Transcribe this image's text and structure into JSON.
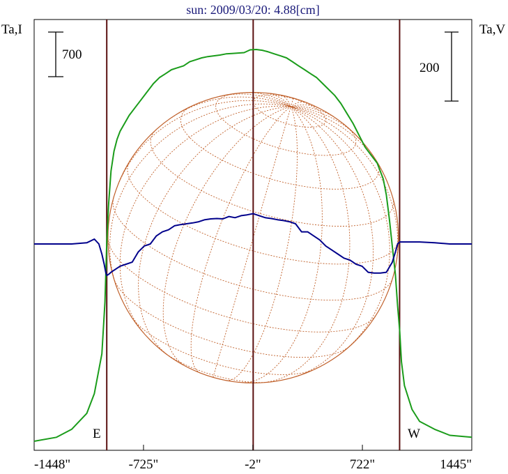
{
  "chart_data": {
    "type": "line",
    "title": "sun: 2009/03/20: 4.88[cm]",
    "left_axis_label": "Ta,I",
    "right_axis_label": "Ta,V",
    "x_tick_labels": [
      "-1448\"",
      "-725\"",
      "-2\"",
      "722\"",
      "1445\""
    ],
    "x_ticks": [
      -1448,
      -725,
      -2,
      722,
      1445
    ],
    "xlim": [
      -1448,
      1445
    ],
    "grid": false,
    "scale_bars": {
      "left": "700",
      "right": "200"
    },
    "limb_labels": {
      "east": "E",
      "west": "W"
    },
    "limb_x": [
      -968,
      0,
      968
    ],
    "disk": {
      "center_x": 0,
      "radius_arcsec": 960
    },
    "colors": {
      "intensity": "#1a9c1a",
      "polarization": "#00008b",
      "limb_lines": "#5a1010",
      "disk": "#c0602a",
      "title": "#1a1a7a"
    },
    "series": [
      {
        "key": "I",
        "x": [
          -1448,
          -1300,
          -1200,
          -1100,
          -1050,
          -1000,
          -980,
          -968,
          -955,
          -940,
          -920,
          -900,
          -880,
          -850,
          -820,
          -780,
          -740,
          -700,
          -660,
          -620,
          -580,
          -540,
          -500,
          -460,
          -420,
          -380,
          -340,
          -300,
          -260,
          -220,
          -180,
          -140,
          -100,
          -60,
          -20,
          20,
          60,
          100,
          140,
          180,
          220,
          260,
          300,
          340,
          380,
          420,
          460,
          500,
          540,
          580,
          620,
          660,
          700,
          740,
          780,
          820,
          860,
          880,
          900,
          920,
          940,
          955,
          968,
          980,
          1000,
          1050,
          1100,
          1200,
          1300,
          1445
        ],
        "y": [
          0.0,
          0.01,
          0.03,
          0.07,
          0.12,
          0.22,
          0.35,
          0.5,
          0.6,
          0.68,
          0.73,
          0.76,
          0.78,
          0.8,
          0.82,
          0.84,
          0.86,
          0.88,
          0.9,
          0.915,
          0.925,
          0.935,
          0.94,
          0.945,
          0.955,
          0.96,
          0.965,
          0.968,
          0.97,
          0.972,
          0.975,
          0.976,
          0.977,
          0.978,
          0.985,
          0.986,
          0.984,
          0.98,
          0.975,
          0.97,
          0.965,
          0.955,
          0.945,
          0.935,
          0.925,
          0.915,
          0.9,
          0.885,
          0.87,
          0.85,
          0.825,
          0.8,
          0.77,
          0.74,
          0.72,
          0.7,
          0.66,
          0.62,
          0.56,
          0.49,
          0.42,
          0.34,
          0.28,
          0.2,
          0.14,
          0.08,
          0.05,
          0.03,
          0.015,
          0.01
        ]
      },
      {
        "key": "V",
        "x": [
          -1448,
          -1200,
          -1100,
          -1050,
          -1020,
          -1000,
          -985,
          -975,
          -968,
          -955,
          -940,
          -920,
          -880,
          -840,
          -800,
          -760,
          -720,
          -680,
          -640,
          -600,
          -560,
          -520,
          -480,
          -440,
          -400,
          -360,
          -320,
          -280,
          -240,
          -200,
          -160,
          -120,
          -80,
          -40,
          0,
          40,
          80,
          120,
          160,
          200,
          240,
          280,
          320,
          360,
          400,
          440,
          480,
          520,
          560,
          600,
          640,
          680,
          720,
          760,
          800,
          840,
          880,
          920,
          940,
          955,
          968,
          980,
          1000,
          1050,
          1100,
          1200,
          1300,
          1445
        ],
        "y": [
          0.0,
          0.0,
          0.003,
          0.012,
          0.0,
          -0.025,
          -0.05,
          -0.07,
          -0.078,
          -0.075,
          -0.07,
          -0.065,
          -0.055,
          -0.05,
          -0.045,
          -0.02,
          -0.005,
          0.0,
          0.02,
          0.03,
          0.035,
          0.045,
          0.048,
          0.05,
          0.052,
          0.055,
          0.06,
          0.062,
          0.063,
          0.062,
          0.068,
          0.065,
          0.07,
          0.072,
          0.075,
          0.07,
          0.065,
          0.063,
          0.06,
          0.058,
          0.055,
          0.05,
          0.03,
          0.03,
          0.02,
          0.01,
          -0.005,
          -0.015,
          -0.025,
          -0.035,
          -0.04,
          -0.05,
          -0.055,
          -0.07,
          -0.072,
          -0.072,
          -0.07,
          -0.045,
          -0.02,
          0.0,
          0.005,
          0.005,
          0.005,
          0.005,
          0.005,
          0.003,
          0.0,
          0.0
        ]
      }
    ]
  }
}
